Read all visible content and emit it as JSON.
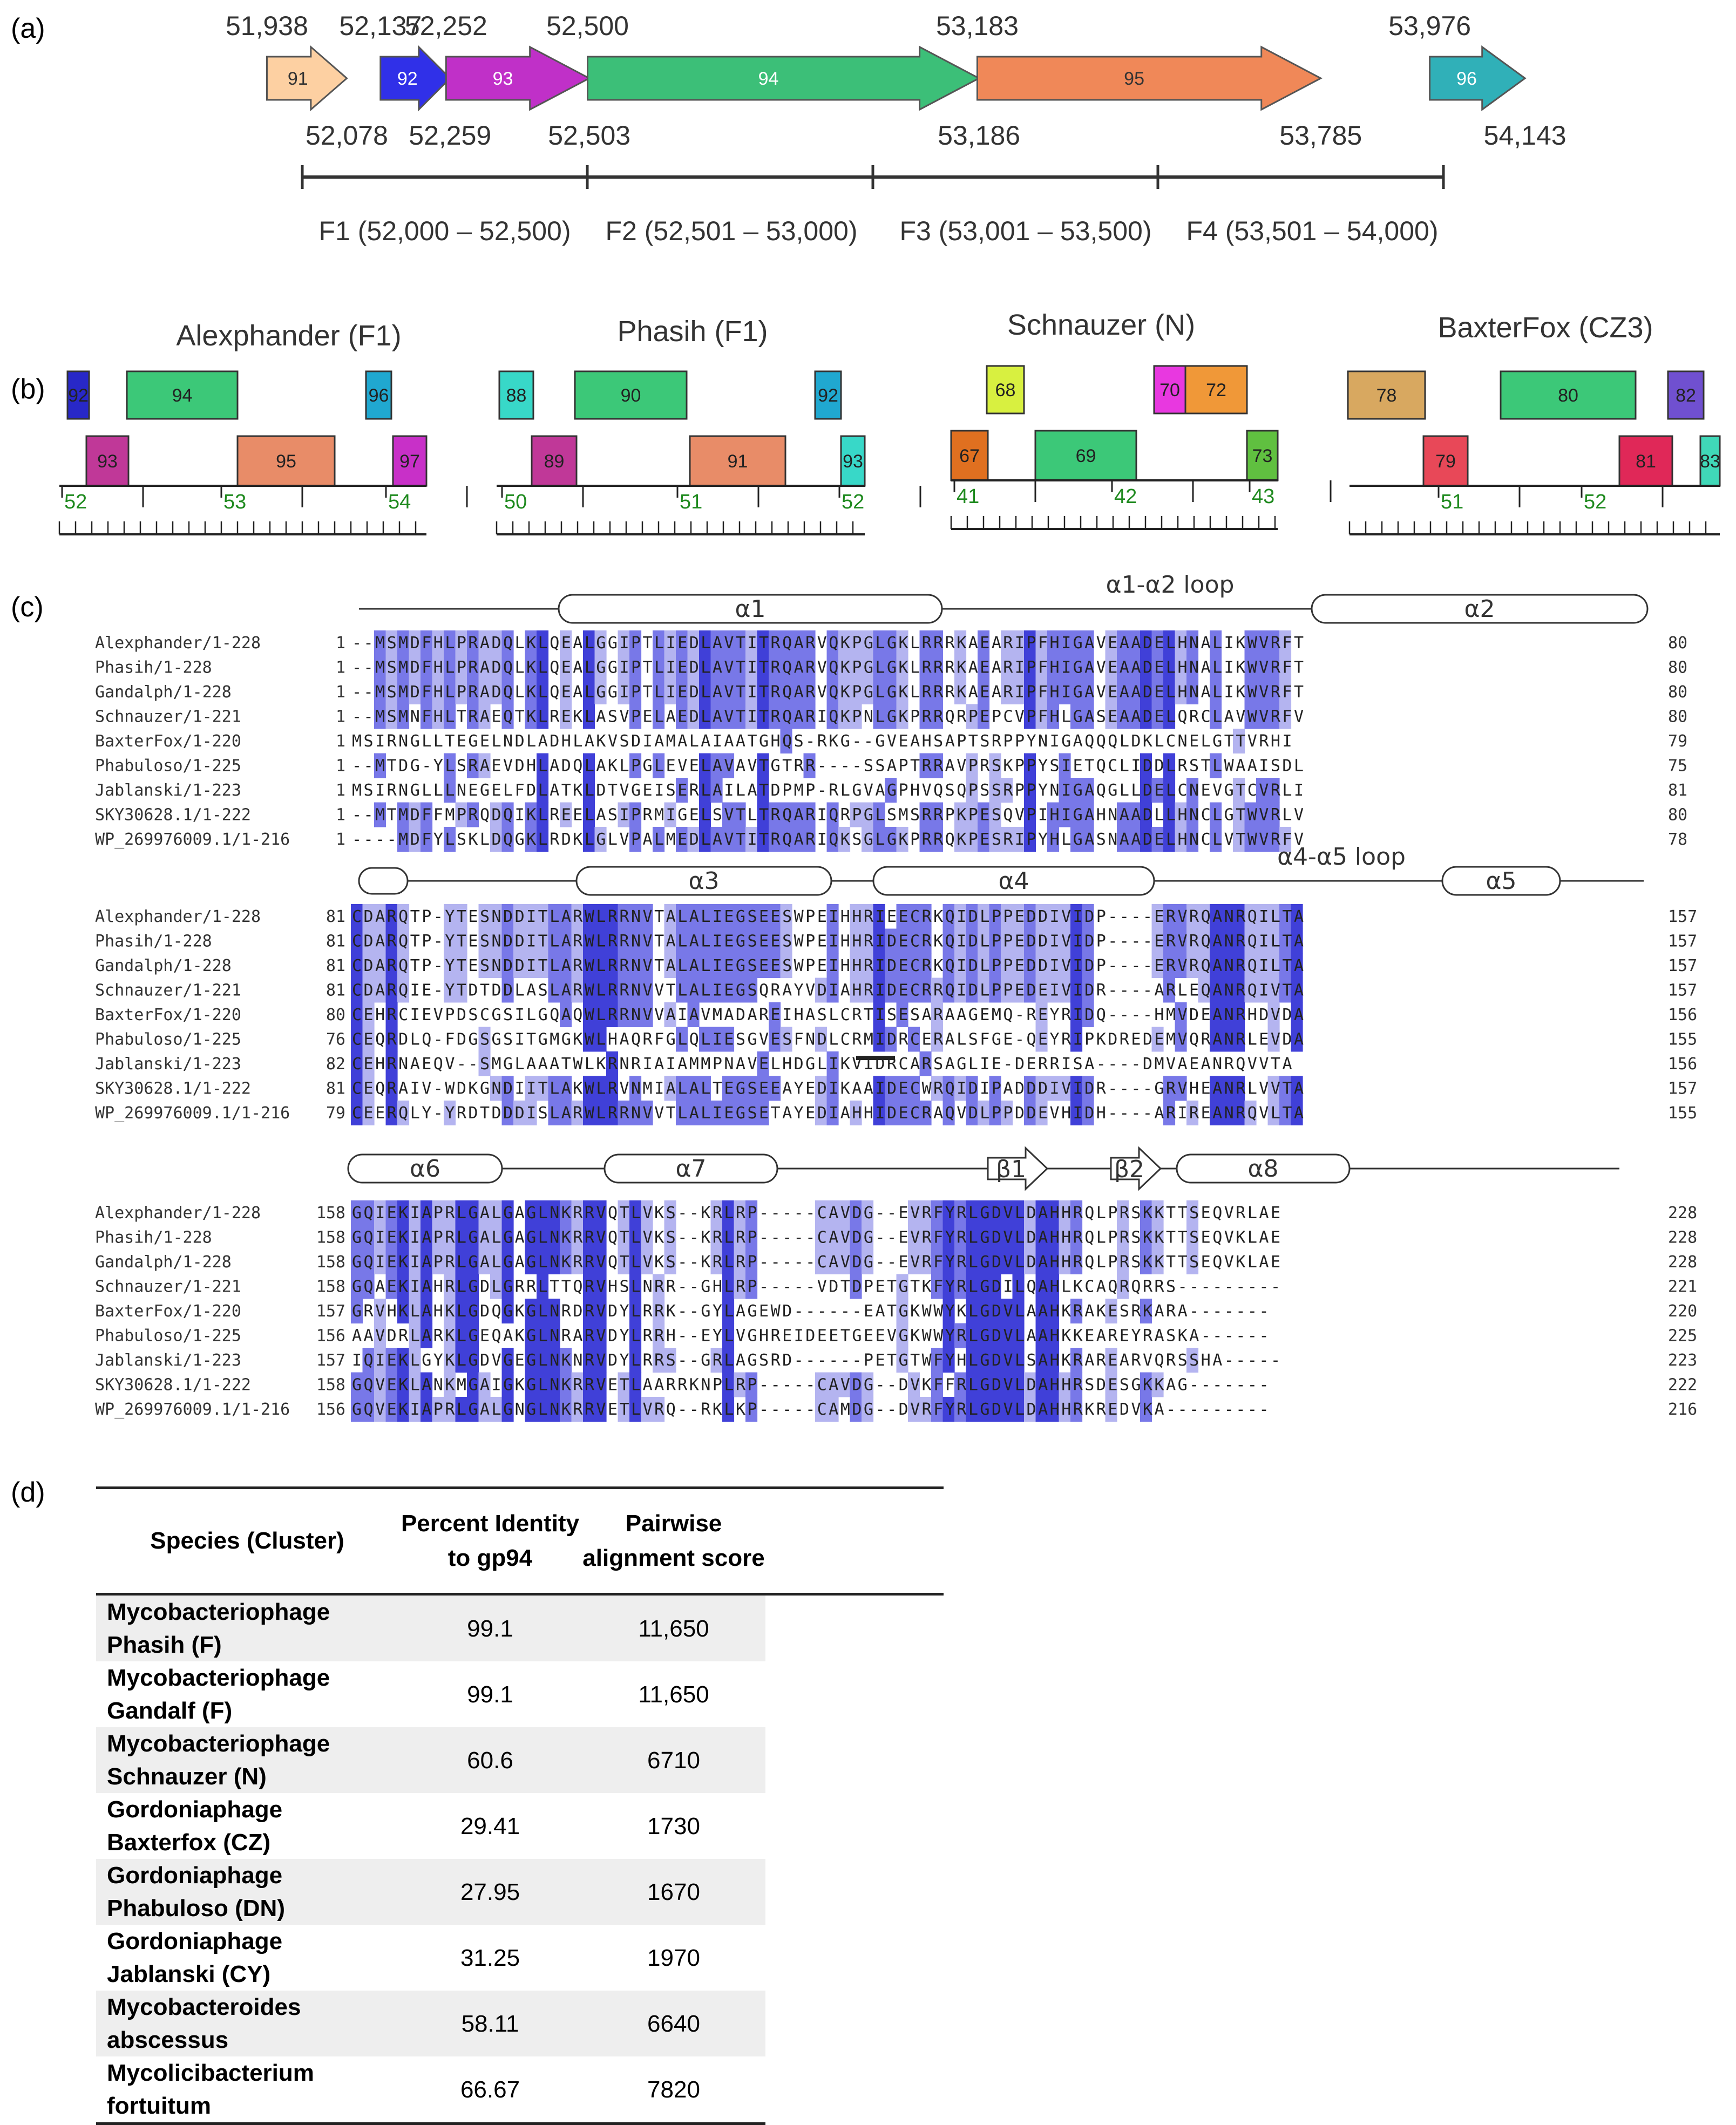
{
  "panel_a": {
    "label": "(a)",
    "genes": [
      {
        "id": "91",
        "start": 51938,
        "end": 52078,
        "start_label": "51,938",
        "end_label": "52,078",
        "color": "#fdd0a2"
      },
      {
        "id": "92",
        "start": 52137,
        "end": 52259,
        "start_label": "52,137",
        "end_label": "52,259",
        "color": "#3030e8"
      },
      {
        "id": "93",
        "start": 52252,
        "end": 52503,
        "start_label": "52,252",
        "end_label": "52,503",
        "color": "#c030c8"
      },
      {
        "id": "94",
        "start": 52500,
        "end": 53186,
        "start_label": "52,500",
        "end_label": "53,186",
        "color": "#3cbf78"
      },
      {
        "id": "95",
        "start": 53183,
        "end": 53785,
        "start_label": "53,183",
        "end_label": "53,785",
        "color": "#f08858"
      },
      {
        "id": "96",
        "start": 53976,
        "end": 54143,
        "start_label": "53,976",
        "end_label": "54,143",
        "color": "#30b0b8"
      }
    ],
    "fragments": [
      "F1 (52,000 – 52,500)",
      "F2 (52,501 – 53,000)",
      "F3 (53,001 – 53,500)",
      "F4 (53,501 – 54,000)"
    ]
  },
  "panel_b": {
    "label": "(b)",
    "maps": [
      {
        "title": "Alexphander (F1)",
        "ticks": [
          "52",
          "53",
          "54"
        ],
        "genes": [
          {
            "id": "92",
            "color": "#2828c8",
            "row": "top"
          },
          {
            "id": "94",
            "color": "#3cc878",
            "row": "top"
          },
          {
            "id": "96",
            "color": "#20a8d0",
            "row": "top"
          },
          {
            "id": "93",
            "color": "#c03898",
            "row": "bottom"
          },
          {
            "id": "95",
            "color": "#e88c68",
            "row": "bottom"
          },
          {
            "id": "97",
            "color": "#c830c8",
            "row": "bottom"
          }
        ]
      },
      {
        "title": "Phasih (F1)",
        "ticks": [
          "50",
          "51",
          "52"
        ],
        "genes": [
          {
            "id": "88",
            "color": "#38d8c8",
            "row": "top"
          },
          {
            "id": "90",
            "color": "#3cc878",
            "row": "top"
          },
          {
            "id": "92",
            "color": "#20a8d0",
            "row": "top"
          },
          {
            "id": "89",
            "color": "#c03898",
            "row": "bottom"
          },
          {
            "id": "91",
            "color": "#e88c68",
            "row": "bottom"
          },
          {
            "id": "93",
            "color": "#38d8c8",
            "row": "bottom"
          }
        ]
      },
      {
        "title": "Schnauzer (N)",
        "ticks": [
          "41",
          "42",
          "43"
        ],
        "genes": [
          {
            "id": "68",
            "color": "#d8f040",
            "row": "top"
          },
          {
            "id": "70",
            "color": "#e838e0",
            "row": "top"
          },
          {
            "id": "72",
            "color": "#f09838",
            "row": "top"
          },
          {
            "id": "67",
            "color": "#e07020",
            "row": "bottom"
          },
          {
            "id": "69",
            "color": "#3cc878",
            "row": "bottom"
          },
          {
            "id": "73",
            "color": "#60c040",
            "row": "bottom"
          }
        ]
      },
      {
        "title": "BaxterFox (CZ3)",
        "ticks": [
          "51",
          "52"
        ],
        "genes": [
          {
            "id": "78",
            "color": "#d8a860",
            "row": "top"
          },
          {
            "id": "80",
            "color": "#3cc878",
            "row": "top"
          },
          {
            "id": "82",
            "color": "#7050d0",
            "row": "top"
          },
          {
            "id": "79",
            "color": "#e84858",
            "row": "bottom"
          },
          {
            "id": "81",
            "color": "#e02858",
            "row": "bottom"
          },
          {
            "id": "83",
            "color": "#40d8b8",
            "row": "bottom"
          }
        ]
      }
    ]
  },
  "panel_c": {
    "label": "(c)",
    "blocks": [
      {
        "structure": [
          {
            "type": "helix",
            "label": "α1"
          },
          {
            "type": "loop",
            "label": "α1-α2 loop"
          },
          {
            "type": "helix",
            "label": "α2"
          }
        ],
        "rows": [
          {
            "name": "Alexphander/1-228",
            "start": "1",
            "seq": "--MSMDFHLPRADQLKLQEALGGIPTLIEDLAVTITRQARVQKPGLGKLRRRKAEARIPFHIGAVEAADELHNALIKWVRFT",
            "end": "80"
          },
          {
            "name": "Phasih/1-228",
            "start": "1",
            "seq": "--MSMDFHLPRADQLKLQEALGGIPTLIEDLAVTITRQARVQKPGLGKLRRRKAEARIPFHIGAVEAADELHNALIKWVRFT",
            "end": "80"
          },
          {
            "name": "Gandalph/1-228",
            "start": "1",
            "seq": "--MSMDFHLPRADQLKLQEALGGIPTLIEDLAVTITRQARVQKPGLGKLRRRKAEARIPFHIGAVEAADELHNALIKWVRFT",
            "end": "80"
          },
          {
            "name": "Schnauzer/1-221",
            "start": "1",
            "seq": "--MSMNFHLTRAEQTKLREKLASVPELAEDLAVTITRQARIQKPNLGKPRRQRPEPCVPFHLGASEAADELQRCLAVWVRFV",
            "end": "80"
          },
          {
            "name": "BaxterFox/1-220",
            "start": "1",
            "seq": "MSIRNGLLTEGELNDLADHLAKVSDIAMALAIAATGHQS-RKG--GVEAHSAPTSRPPYNIGAQQQLDKLCNELGTTVRHI",
            "end": "79"
          },
          {
            "name": "Phabuloso/1-225",
            "start": "1",
            "seq": "--MTDG-YLSRAEVDHLADQLAKLPGLEVELAVAVTGTRR----SSAPTRRAVPRSKPPYSIETQCLIDDLRSTLWAAISDL",
            "end": "75"
          },
          {
            "name": "Jablanski/1-223",
            "start": "1",
            "seq": "MSIRNGLLLNEGELFDLATKLDTVGEISERLAILATDPMP-RLGVAGPHVQSQPSSRPPYNIGAQGLLDELCNEVGTCVRLI",
            "end": "81"
          },
          {
            "name": "SKY30628.1/1-222",
            "start": "1",
            "seq": "--MTMDFFMPRQDQIKLREELASIPRMIGELSVTLTRQARIQRPGLSMSRRPKPESQVPIHIGAHNAADLLHNCLGTWVRLV",
            "end": "80"
          },
          {
            "name": "WP_269976009.1/1-216",
            "start": "1",
            "seq": "----MDFYLSKLDQGKLRDKLGLVPALMEDLAVTITRQARIQKSGLGKPRRQKPESRIPYHLGASNAADELHNCLVTWVRFV",
            "end": "78"
          }
        ]
      },
      {
        "structure": [
          {
            "type": "helix",
            "label": "α3"
          },
          {
            "type": "helix",
            "label": "α4"
          },
          {
            "type": "loop",
            "label": "α4-α5 loop"
          },
          {
            "type": "helix",
            "label": "α5"
          }
        ],
        "rows": [
          {
            "name": "Alexphander/1-228",
            "start": "81",
            "seq": "CDARQTP-YTESNDDITLARWLRRNVTALALIEGSEESWPEIHHRIEECRKQIDLPPEDDIVIDP----ERVRQANRQILTA",
            "end": "157"
          },
          {
            "name": "Phasih/1-228",
            "start": "81",
            "seq": "CDARQTP-YTESNDDITLARWLRRNVTALALIEGSEESWPEIHHRIDECRKQIDLPPEDDIVIDP----ERVRQANRQILTA",
            "end": "157"
          },
          {
            "name": "Gandalph/1-228",
            "start": "81",
            "seq": "CDARQTP-YTESNDDITLARWLRRNVTALALIEGSEESWPEIHHRIDECRKQIDLPPEDDIVIDP----ERVRQANRQILTA",
            "end": "157"
          },
          {
            "name": "Schnauzer/1-221",
            "start": "81",
            "seq": "CDARQIE-YTDTDDLASLARWLRRNVVTLALIEGSQRAYVDIAHRIDECRRQIDLPPEDEIVIDR----ARLEQANRQIVTA",
            "end": "157"
          },
          {
            "name": "BaxterFox/1-220",
            "start": "80",
            "seq": "CEHRCIEVPDSCGSILGQAQWLRRNVVAIAVMADAREIHASLCRTISESARAAGEMQ-REYRIDQ----HMVDEANRHDVDA",
            "end": "156"
          },
          {
            "name": "Phabuloso/1-225",
            "start": "76",
            "seq": "CEQRDLQ-FDGSGSITGMGKWLHAQRFGLQLIESGVESFNDLCRMIDRCERALSFGE-QEYRIPKDREDEMVQRANRLEVDA",
            "end": "155"
          },
          {
            "name": "Jablanski/1-223",
            "start": "82",
            "seq": "CEHRNAEQV--SMGLAAATWLKRNRIAIAMMPNAVELHDGLIKVIDRCARSAGLIE-DERRISA----DMVAEANRQVVTA",
            "end": "156"
          },
          {
            "name": "SKY30628.1/1-222",
            "start": "81",
            "seq": "CEQRAIV-WDKGNDIITLAKWLRVNMIALALTEGSEEAYEDIKAAIDECWRQIDIPADDDIVIDR----GRVHEANRLVVTA",
            "end": "157"
          },
          {
            "name": "WP_269976009.1/1-216",
            "start": "79",
            "seq": "CEERQLY-YRDTDDDISLARWLRRNVVTLALIEGSETAYEDIAHHIDECRAQVDLPPDDEVHIDH----ARIREANRQVLTA",
            "end": "155"
          }
        ]
      },
      {
        "structure": [
          {
            "type": "helix",
            "label": "α6"
          },
          {
            "type": "helix",
            "label": "α7"
          },
          {
            "type": "strand",
            "label": "β1"
          },
          {
            "type": "strand",
            "label": "β2"
          },
          {
            "type": "helix",
            "label": "α8"
          }
        ],
        "rows": [
          {
            "name": "Alexphander/1-228",
            "start": "158",
            "seq": "GQIEKIAPRLGALGAGLNKRRVQTLVKS--KRLRP-----CAVDG--EVRFYRLGDVLDAHHRQLPRSKKTTSEQVRLAE",
            "end": "228"
          },
          {
            "name": "Phasih/1-228",
            "start": "158",
            "seq": "GQIEKIAPRLGALGAGLNKRRVQTLVKS--KRLRP-----CAVDG--EVRFYRLGDVLDAHHRQLPRSKKTTSEQVKLAE",
            "end": "228"
          },
          {
            "name": "Gandalph/1-228",
            "start": "158",
            "seq": "GQIEKIAPRLGALGAGLNKRRVQTLVKS--KRLRP-----CAVDG--EVRFYRLGDVLDAHHRQLPRSKKTTSEQVKLAE",
            "end": "228"
          },
          {
            "name": "Schnauzer/1-221",
            "start": "158",
            "seq": "GQAEKIAHRLGDLGRRLTTQRVHSLNRR--GHLRP-----VDTDPETGTKFYRLGDILQAHLKCAQRQRRS---------",
            "end": "221"
          },
          {
            "name": "BaxterFox/1-220",
            "start": "157",
            "seq": "GRVHKLAHKLGDQGKGLNRDRVDYLRRK--GYLAGEWD------EATGKWWYKLGDVLAAHKRAKESRKARA-------",
            "end": "220"
          },
          {
            "name": "Phabuloso/1-225",
            "start": "156",
            "seq": "AAVDRLARKLGEQAKGLNRARVDYLRRH--EYLVGHREIDEETGEEVGKWWYRLGDVLAAHKKEAREYRASKA------",
            "end": "225"
          },
          {
            "name": "Jablanski/1-223",
            "start": "157",
            "seq": "IQIEKLGYKLGDVGEGLNKNRVDYLRRS--GRLAGSRD------PETGTWFYHLGDVLSAHKRAREARVQRSSHA-----",
            "end": "223"
          },
          {
            "name": "SKY30628.1/1-222",
            "start": "158",
            "seq": "GQVEKLANKMGAIGKGLNKRRVETLAARRKNPLRP-----CAVDG--DVKFFRLGDVLDAHHRSDESGKKAG-------",
            "end": "222"
          },
          {
            "name": "WP_269976009.1/1-216",
            "start": "156",
            "seq": "GQVEKIAPRLGALGNGLNKRRVETLVRQ--RKLKP-----CAMDG--DVRFYRLGDVLDAHHRKREDVKA---------",
            "end": "216"
          }
        ]
      }
    ]
  },
  "panel_d": {
    "label": "(d)",
    "headers": [
      "Species (Cluster)",
      "Percent Identity to gp94",
      "Pairwise alignment score"
    ],
    "rows": [
      {
        "species": "Mycobacteriophage Phasih (F)",
        "identity": "99.1",
        "score": "11,650"
      },
      {
        "species": "Mycobacteriophage Gandalf (F)",
        "identity": "99.1",
        "score": "11,650"
      },
      {
        "species": "Mycobacteriophage Schnauzer (N)",
        "identity": "60.6",
        "score": "6710"
      },
      {
        "species": "Gordoniaphage Baxterfox (CZ)",
        "identity": "29.41",
        "score": "1730"
      },
      {
        "species": "Gordoniaphage Phabuloso (DN)",
        "identity": "27.95",
        "score": "1670"
      },
      {
        "species": "Gordoniaphage Jablanski (CY)",
        "identity": "31.25",
        "score": "1970"
      },
      {
        "species": "Mycobacteroides abscessus",
        "identity": "58.11",
        "score": "6640"
      },
      {
        "species": "Mycolicibacterium fortuitum",
        "identity": "66.67",
        "score": "7820"
      }
    ]
  }
}
